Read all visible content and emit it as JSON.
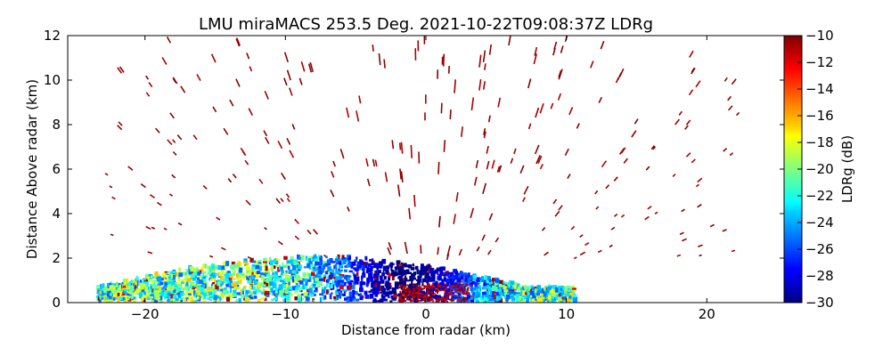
{
  "chart_data": {
    "type": "heatmap",
    "title": "LMU miraMACS 253.5 Deg. 2021-10-22T09:08:37Z  LDRg",
    "xlabel": "Distance from radar (km)",
    "ylabel": "Distance Above radar  (km)",
    "xlim": [
      -25.5,
      25.5
    ],
    "ylim": [
      0,
      12
    ],
    "xticks": [
      -20,
      -10,
      0,
      10,
      20
    ],
    "xtick_labels": [
      "−20",
      "−10",
      "0",
      "10",
      "20"
    ],
    "yticks": [
      0,
      2,
      4,
      6,
      8,
      10,
      12
    ],
    "ytick_labels": [
      "0",
      "2",
      "4",
      "6",
      "8",
      "10",
      "12"
    ],
    "colorbar": {
      "label": "LDRg (dB)",
      "colormap": "jet",
      "range": [
        -30,
        -10
      ],
      "ticks": [
        -10,
        -12,
        -14,
        -16,
        -18,
        -20,
        -22,
        -24,
        -26,
        -28,
        -30
      ],
      "tick_labels": [
        "−10",
        "−12",
        "−14",
        "−16",
        "−18",
        "−20",
        "−22",
        "−24",
        "−26",
        "−28",
        "−30"
      ]
    },
    "echo_regions": [
      {
        "name": "low-level precipitation layer",
        "x_range": [
          -23.5,
          10.5
        ],
        "y_range": [
          0,
          2.0
        ],
        "ldr_range": [
          -30,
          -16
        ]
      },
      {
        "name": "near-radar clutter",
        "x_range": [
          -2,
          3
        ],
        "y_range": [
          0,
          0.8
        ],
        "ldr_range": [
          -12,
          -10
        ]
      },
      {
        "name": "scattered high-LDR returns aloft",
        "x_range": [
          -23,
          23
        ],
        "y_range": [
          2,
          12
        ],
        "ldr_range": [
          -11,
          -10
        ]
      }
    ],
    "colors": {
      "axis": "#000000",
      "background": "#ffffff",
      "high_ldr": "#800000"
    }
  }
}
